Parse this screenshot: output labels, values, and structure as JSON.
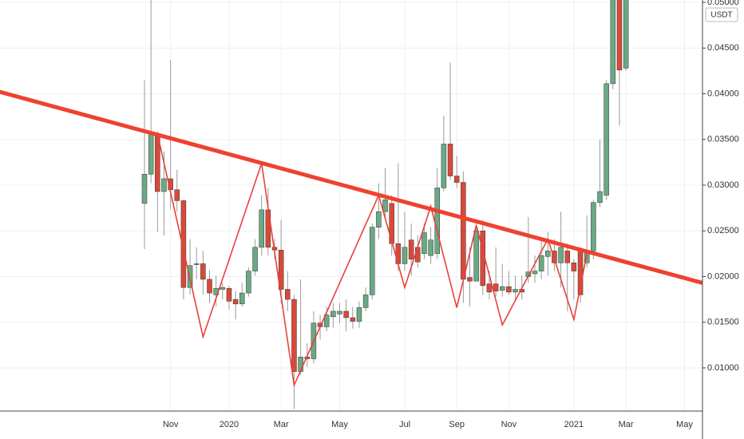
{
  "chart_data": {
    "type": "candlestick",
    "currency": "USDT",
    "categories": [
      null,
      null,
      null,
      null,
      "Nov",
      null,
      null,
      null,
      null,
      null,
      null,
      null,
      null,
      "2020",
      null,
      null,
      null,
      null,
      null,
      null,
      null,
      "Mar",
      null,
      null,
      null,
      null,
      null,
      null,
      null,
      null,
      "May",
      null,
      null,
      null,
      null,
      null,
      null,
      null,
      null,
      null,
      "Jul",
      null,
      null,
      null,
      null,
      null,
      null,
      null,
      "Sep",
      null,
      null,
      null,
      null,
      null,
      null,
      null,
      "Nov",
      null,
      null,
      null,
      null,
      null,
      null,
      null,
      null,
      null,
      "2021",
      null,
      null,
      null,
      null,
      null,
      null,
      null,
      "Mar",
      null,
      null,
      null,
      null,
      null,
      null,
      null,
      null,
      "May",
      null,
      null
    ],
    "open": [
      0.028,
      0.0312,
      0.0356,
      0.0293,
      0.0307,
      0.0295,
      0.0283,
      0.0188,
      0.0213,
      0.0214,
      0.0197,
      0.018,
      0.0186,
      0.0187,
      0.0175,
      0.017,
      0.0182,
      0.0206,
      0.0232,
      0.0273,
      0.0232,
      0.0229,
      0.0186,
      0.0175,
      0.0096,
      0.0112,
      0.011,
      0.0149,
      0.0145,
      0.0156,
      0.0159,
      0.0162,
      0.0155,
      0.0151,
      0.0166,
      0.018,
      0.0254,
      0.0271,
      0.028,
      0.0236,
      0.0214,
      0.024,
      0.0232,
      0.0225,
      0.0223,
      0.0225,
      0.0297,
      0.0345,
      0.031,
      0.0303,
      0.0199,
      0.0195,
      0.025,
      0.0192,
      0.0192,
      0.0185,
      0.0189,
      0.0183,
      0.0186,
      0.02,
      0.0203,
      0.0206,
      0.0222,
      0.0228,
      0.0215,
      0.0228,
      0.0215,
      0.0228,
      0.0215,
      0.0228,
      0.0281,
      0.0289,
      0.0411,
      0.052,
      0.0428,
      null,
      null,
      null,
      null,
      null,
      null,
      null,
      null,
      null,
      null,
      null
    ],
    "high": [
      0.0415,
      0.051,
      0.0359,
      0.0337,
      0.0437,
      0.0317,
      0.0284,
      0.0241,
      0.0232,
      0.0228,
      0.0207,
      0.0201,
      0.0193,
      0.019,
      0.0184,
      0.0193,
      0.021,
      0.0241,
      0.0289,
      0.0297,
      0.0241,
      0.0262,
      0.0206,
      0.018,
      0.0197,
      0.0127,
      0.0162,
      0.0158,
      0.0167,
      0.0171,
      0.0171,
      0.0175,
      0.0167,
      0.0173,
      0.0188,
      0.0258,
      0.0302,
      0.0319,
      0.0289,
      0.0324,
      0.0271,
      0.0258,
      0.0245,
      0.0258,
      0.0254,
      0.0319,
      0.0376,
      0.0434,
      0.0332,
      0.0315,
      0.0232,
      0.0258,
      0.0262,
      0.0206,
      0.0232,
      0.0214,
      0.0206,
      0.0201,
      0.0201,
      0.0265,
      0.0223,
      0.0241,
      0.0249,
      0.0241,
      0.0271,
      0.0236,
      0.0219,
      0.0232,
      0.0267,
      0.0284,
      0.035,
      0.0415,
      0.056,
      0.056,
      0.055,
      null,
      null,
      null,
      null,
      null,
      null,
      null,
      null,
      null,
      null,
      null
    ],
    "low": [
      0.023,
      0.0302,
      0.0249,
      0.0245,
      0.0274,
      0.0271,
      0.0175,
      0.018,
      0.0197,
      0.018,
      0.0171,
      0.0167,
      0.0175,
      0.0164,
      0.0153,
      0.0167,
      0.0178,
      0.0201,
      0.0223,
      0.0223,
      0.0219,
      0.0171,
      0.0162,
      0.0055,
      0.0092,
      0.0101,
      0.0105,
      0.0131,
      0.014,
      0.0144,
      0.0149,
      0.014,
      0.0143,
      0.0144,
      0.0162,
      0.0175,
      0.0241,
      0.0262,
      0.0223,
      0.0206,
      0.0206,
      0.0201,
      0.021,
      0.0219,
      0.0214,
      0.0219,
      0.0293,
      0.0306,
      0.0297,
      0.0171,
      0.0167,
      0.0197,
      0.018,
      0.0175,
      0.0178,
      0.0178,
      0.018,
      0.0175,
      0.0175,
      0.0193,
      0.0193,
      0.0197,
      0.0201,
      0.0206,
      0.0188,
      0.0162,
      0.0175,
      0.0171,
      0.021,
      0.0219,
      0.0276,
      0.0284,
      0.0405,
      0.0365,
      0.0425,
      null,
      null,
      null,
      null,
      null,
      null,
      null,
      null,
      null,
      null,
      null
    ],
    "close": [
      0.0312,
      0.0356,
      0.0293,
      0.0307,
      0.0295,
      0.0283,
      0.0188,
      0.0212,
      0.0214,
      0.0197,
      0.0182,
      0.0187,
      0.0188,
      0.0173,
      0.017,
      0.0182,
      0.0206,
      0.0232,
      0.0273,
      0.0232,
      0.0229,
      0.0186,
      0.0175,
      0.0096,
      0.0112,
      0.011,
      0.0149,
      0.0145,
      0.0158,
      0.0162,
      0.0162,
      0.0155,
      0.0151,
      0.0166,
      0.018,
      0.0254,
      0.0271,
      0.0284,
      0.0236,
      0.0214,
      0.0232,
      0.0219,
      0.0216,
      0.0248,
      0.024,
      0.0297,
      0.0345,
      0.031,
      0.0303,
      0.0197,
      0.0195,
      0.025,
      0.019,
      0.0183,
      0.0184,
      0.0189,
      0.0183,
      0.0186,
      0.0183,
      0.0205,
      0.0206,
      0.0223,
      0.0228,
      0.0215,
      0.0232,
      0.0215,
      0.0206,
      0.018,
      0.0228,
      0.0281,
      0.0293,
      0.0411,
      0.052,
      0.0426,
      0.051,
      null,
      null,
      null,
      null,
      null,
      null,
      null,
      null,
      null,
      null,
      null
    ],
    "up_color": "#6aa984",
    "down_color": "#d9493a",
    "wick_color": "#9a9a9a",
    "zigzag": {
      "color": "#e8413a",
      "span_gaps": true,
      "values": [
        null,
        null,
        0.0356,
        null,
        null,
        null,
        null,
        null,
        null,
        0.0134,
        null,
        null,
        null,
        null,
        null,
        null,
        null,
        null,
        0.0324,
        null,
        null,
        null,
        null,
        0.0081,
        null,
        null,
        null,
        null,
        null,
        null,
        null,
        null,
        null,
        null,
        null,
        null,
        0.0289,
        null,
        null,
        null,
        0.0188,
        null,
        null,
        null,
        0.0277,
        null,
        null,
        null,
        0.0166,
        null,
        null,
        0.0256,
        null,
        null,
        null,
        0.0147,
        null,
        null,
        null,
        null,
        null,
        null,
        0.0241,
        null,
        null,
        null,
        0.0153,
        null,
        0.0225,
        null,
        null,
        null,
        null,
        null,
        null,
        null,
        null,
        null,
        null,
        null,
        null,
        null,
        null,
        null,
        null,
        null
      ]
    },
    "trendline": {
      "color": "#f0412f",
      "values": [
        0.0402,
        0.0193
      ]
    },
    "ylim": [
      0.00528,
      0.05026
    ],
    "yticks": [
      {
        "value": 0.05,
        "label": "0.05000"
      },
      {
        "value": 0.045,
        "label": "0.04500"
      },
      {
        "value": 0.04,
        "label": "0.04000"
      },
      {
        "value": 0.035,
        "label": "0.03500"
      },
      {
        "value": 0.03,
        "label": "0.03000"
      },
      {
        "value": 0.025,
        "label": "0.02500"
      },
      {
        "value": 0.02,
        "label": "0.02000"
      },
      {
        "value": 0.015,
        "label": "0.01500"
      },
      {
        "value": 0.01,
        "label": "0.01000"
      }
    ],
    "grid": true
  }
}
